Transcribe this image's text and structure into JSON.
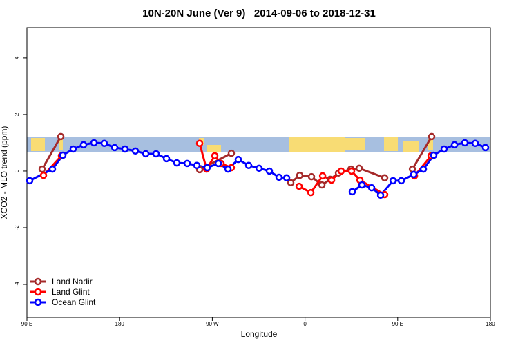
{
  "chart_data": {
    "type": "line",
    "title": "10N-20N June (Ver 9)   2014-09-06 to 2018-12-31",
    "xlabel": "Longitude",
    "ylabel": "XCO2 - MLO trend (ppm)",
    "xlim": [
      90,
      540
    ],
    "ylim": [
      -5.17,
      5.07
    ],
    "xticks": [
      {
        "value": 90,
        "label": "90 E"
      },
      180,
      {
        "value": 270,
        "label": "90 W"
      },
      {
        "value": 360,
        "label": "0"
      },
      {
        "value": 450,
        "label": "90 E"
      },
      180
    ],
    "yticks": [
      -4,
      -2,
      0,
      2,
      4
    ],
    "legend": "bottom-left",
    "series": [
      {
        "name": "Land Nadir",
        "color": "#a52a2a",
        "x": [
          104.8,
          122.9,
          null,
          257.7,
          288.5,
          null,
          346.2,
          354.9,
          366.3,
          376.4,
          384.5,
          392.5,
          404.6,
          412.6,
          437.4,
          null,
          464.3,
          483.0
        ],
        "values": [
          0.07,
          1.22,
          null,
          0.05,
          0.63,
          null,
          -0.41,
          -0.15,
          -0.2,
          -0.49,
          -0.29,
          -0.07,
          0.07,
          0.1,
          -0.24,
          null,
          0.07,
          1.22
        ]
      },
      {
        "name": "Land Glint",
        "color": "#ff0000",
        "x": [
          106.1,
          123.5,
          null,
          257.7,
          264.4,
          272.4,
          278.5,
          288.5,
          null,
          354.3,
          365.7,
          377.1,
          385.8,
          395.2,
          405.2,
          413.3,
          437.4,
          null,
          466.3,
          482.4
        ],
        "values": [
          -0.15,
          0.54,
          null,
          0.98,
          0.07,
          0.54,
          0.27,
          0.12,
          null,
          -0.54,
          -0.76,
          -0.17,
          -0.32,
          0.0,
          0.0,
          -0.32,
          -0.83,
          null,
          -0.17,
          0.54
        ]
      },
      {
        "name": "Ocean Glint",
        "color": "#0000ff",
        "x": [
          92.7,
          114.8,
          124.9,
          134.9,
          145.0,
          155.1,
          165.1,
          175.2,
          185.2,
          195.3,
          205.4,
          215.4,
          225.5,
          235.5,
          245.6,
          255.0,
          265.0,
          275.8,
          285.2,
          295.2,
          305.3,
          315.4,
          325.4,
          334.8,
          342.2,
          null,
          405.9,
          415.3,
          424.7,
          433.4,
          445.5,
          453.5,
          465.6,
          475.0,
          485.0,
          495.1,
          505.2,
          515.2,
          525.3,
          535.3
        ],
        "values": [
          -0.34,
          0.07,
          0.56,
          0.78,
          0.93,
          1.0,
          0.98,
          0.83,
          0.78,
          0.71,
          0.61,
          0.61,
          0.44,
          0.29,
          0.27,
          0.2,
          0.12,
          0.27,
          0.07,
          0.41,
          0.2,
          0.1,
          0.0,
          -0.22,
          -0.24,
          null,
          -0.73,
          -0.49,
          -0.59,
          -0.85,
          -0.34,
          -0.34,
          -0.12,
          0.07,
          0.56,
          0.78,
          0.93,
          1.0,
          0.98,
          0.83
        ]
      }
    ]
  }
}
